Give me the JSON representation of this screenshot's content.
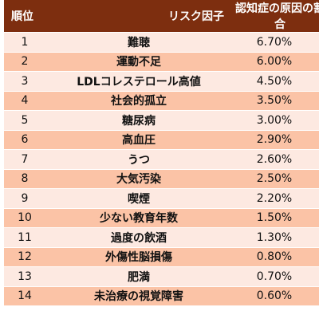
{
  "headers": {
    "rank": "順位",
    "factor": "リスク因子",
    "ratio": "認知症の原因の割合"
  },
  "rows": [
    {
      "rank": "1",
      "factor": "難聴",
      "ratio": "6.70%"
    },
    {
      "rank": "2",
      "factor": "運動不足",
      "ratio": "6.00%"
    },
    {
      "rank": "3",
      "factor": "LDLコレステロール高値",
      "ratio": "4.50%"
    },
    {
      "rank": "4",
      "factor": "社会的孤立",
      "ratio": "3.50%"
    },
    {
      "rank": "5",
      "factor": "糖尿病",
      "ratio": "3.00%"
    },
    {
      "rank": "6",
      "factor": "高血圧",
      "ratio": "2.90%"
    },
    {
      "rank": "7",
      "factor": "うつ",
      "ratio": "2.60%"
    },
    {
      "rank": "8",
      "factor": "大気汚染",
      "ratio": "2.50%"
    },
    {
      "rank": "9",
      "factor": "喫煙",
      "ratio": "2.20%"
    },
    {
      "rank": "10",
      "factor": "少ない教育年数",
      "ratio": "1.50%"
    },
    {
      "rank": "11",
      "factor": "過度の飲酒",
      "ratio": "1.30%"
    },
    {
      "rank": "12",
      "factor": "外傷性脳損傷",
      "ratio": "0.80%"
    },
    {
      "rank": "13",
      "factor": "肥満",
      "ratio": "0.70%"
    },
    {
      "rank": "14",
      "factor": "未治療の視覚障害",
      "ratio": "0.60%"
    }
  ],
  "colors": {
    "header_bg": "#7d2e0f",
    "row_light": "#fde9e1",
    "row_dark": "#fbc3a6"
  }
}
